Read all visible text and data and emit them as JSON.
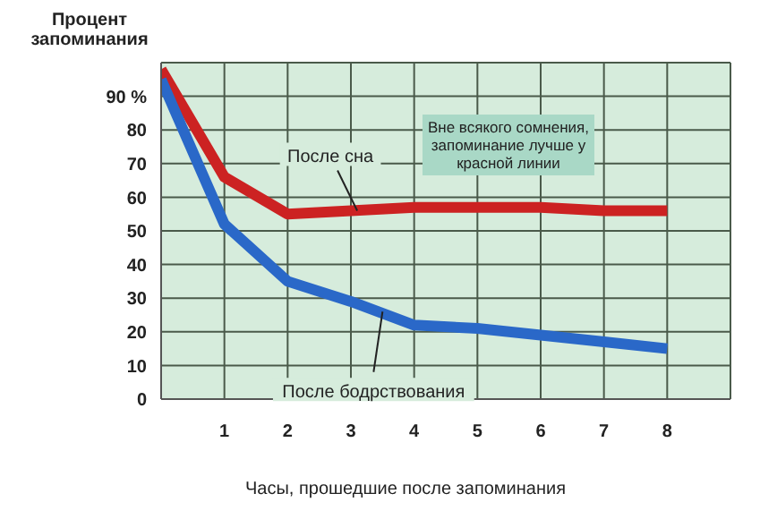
{
  "chart_data": {
    "type": "line",
    "ylabel": "Процент запоминания",
    "xlabel": "Часы, прошедшие после запоминания",
    "x": [
      0,
      1,
      2,
      3,
      4,
      5,
      6,
      7,
      8
    ],
    "series": [
      {
        "color": "#cc2222",
        "values": [
          98,
          66,
          55,
          56,
          57,
          57,
          57,
          56,
          56
        ]
      },
      {
        "color": "#2a68c8",
        "values": [
          95,
          52,
          35,
          29,
          22,
          21,
          19,
          17,
          15
        ]
      }
    ],
    "xlim": [
      0,
      9
    ],
    "xticks": [
      1,
      2,
      3,
      4,
      5,
      6,
      7,
      8
    ],
    "ylim": [
      0,
      100
    ],
    "yticks": [
      0,
      10,
      20,
      30,
      40,
      50,
      60,
      70,
      80,
      {
        "value": 90,
        "label": "90 %"
      }
    ],
    "grid": true,
    "marker": "none",
    "line_style": "solid",
    "annotations": [
      {
        "text": "После сна",
        "x": 3.1,
        "y": 56
      },
      {
        "text": "После бодрствования",
        "x": 3.5,
        "y": 26
      },
      "Вне всякого сомнения, запоминание лучше у красной линии"
    ]
  }
}
